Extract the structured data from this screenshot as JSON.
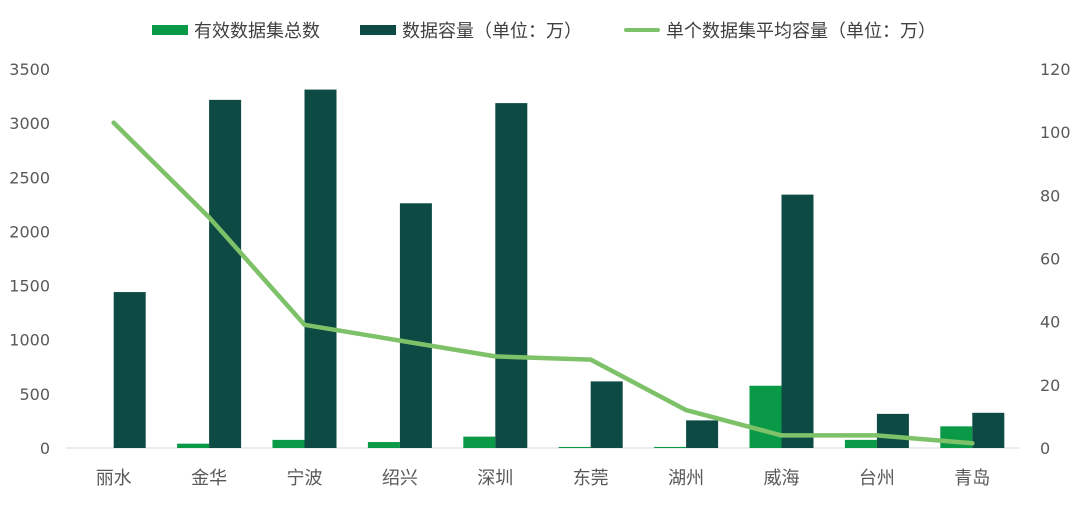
{
  "colors": {
    "count": "#0a9a47",
    "capacity": "#0d4a43",
    "avg": "#7dc168",
    "axis_text": "#595959",
    "axis_line": "#d9d9d9"
  },
  "legend": {
    "count": "有效数据集总数",
    "capacity": "数据容量（单位：万）",
    "avg": "单个数据集平均容量（单位：万）"
  },
  "chart_data": {
    "type": "bar",
    "categories": [
      "丽水",
      "金华",
      "宁波",
      "绍兴",
      "深圳",
      "东莞",
      "湖州",
      "威海",
      "台州",
      "青岛"
    ],
    "series": [
      {
        "name": "有效数据集总数",
        "type": "bar",
        "axis": "left",
        "values": [
          0,
          40,
          75,
          55,
          105,
          10,
          10,
          575,
          75,
          200
        ]
      },
      {
        "name": "数据容量（单位：万）",
        "type": "bar",
        "axis": "left",
        "values": [
          1440,
          3215,
          3310,
          2260,
          3185,
          615,
          255,
          2340,
          315,
          325
        ]
      },
      {
        "name": "单个数据集平均容量（单位：万）",
        "type": "line",
        "axis": "right",
        "values": [
          103,
          73,
          39,
          34,
          29,
          28,
          12,
          4,
          4,
          1.5
        ]
      }
    ],
    "y_left": {
      "min": 0,
      "max": 3500,
      "ticks": [
        0,
        500,
        1000,
        1500,
        2000,
        2500,
        3000,
        3500
      ]
    },
    "y_right": {
      "min": 0,
      "max": 120,
      "ticks": [
        0,
        20,
        40,
        60,
        80,
        100,
        120
      ]
    },
    "grid": false,
    "legend_position": "top"
  }
}
